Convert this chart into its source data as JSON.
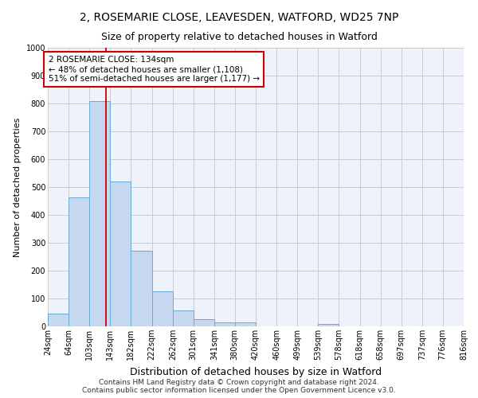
{
  "title": "2, ROSEMARIE CLOSE, LEAVESDEN, WATFORD, WD25 7NP",
  "subtitle": "Size of property relative to detached houses in Watford",
  "xlabel": "Distribution of detached houses by size in Watford",
  "ylabel": "Number of detached properties",
  "bin_labels": [
    "24sqm",
    "64sqm",
    "103sqm",
    "143sqm",
    "182sqm",
    "222sqm",
    "262sqm",
    "301sqm",
    "341sqm",
    "380sqm",
    "420sqm",
    "460sqm",
    "499sqm",
    "539sqm",
    "578sqm",
    "618sqm",
    "658sqm",
    "697sqm",
    "737sqm",
    "776sqm",
    "816sqm"
  ],
  "bin_edges": [
    24,
    64,
    103,
    143,
    182,
    222,
    262,
    301,
    341,
    380,
    420,
    460,
    499,
    539,
    578,
    618,
    658,
    697,
    737,
    776,
    816
  ],
  "bar_heights": [
    46,
    462,
    810,
    520,
    272,
    126,
    58,
    26,
    14,
    14,
    0,
    0,
    0,
    10,
    0,
    0,
    0,
    0,
    0,
    0
  ],
  "bar_color": "#c5d8ef",
  "bar_edge_color": "#6aaad4",
  "property_size": 134,
  "vline_color": "#cc0000",
  "annotation_line1": "2 ROSEMARIE CLOSE: 134sqm",
  "annotation_line2": "← 48% of detached houses are smaller (1,108)",
  "annotation_line3": "51% of semi-detached houses are larger (1,177) →",
  "annotation_box_color": "#ffffff",
  "annotation_box_edge_color": "#cc0000",
  "ylim": [
    0,
    1000
  ],
  "yticks": [
    0,
    100,
    200,
    300,
    400,
    500,
    600,
    700,
    800,
    900,
    1000
  ],
  "grid_color": "#cccccc",
  "background_color": "#eef2fa",
  "footer_text": "Contains HM Land Registry data © Crown copyright and database right 2024.\nContains public sector information licensed under the Open Government Licence v3.0.",
  "title_fontsize": 10,
  "subtitle_fontsize": 9,
  "xlabel_fontsize": 9,
  "ylabel_fontsize": 8,
  "tick_fontsize": 7,
  "annotation_fontsize": 7.5,
  "footer_fontsize": 6.5
}
